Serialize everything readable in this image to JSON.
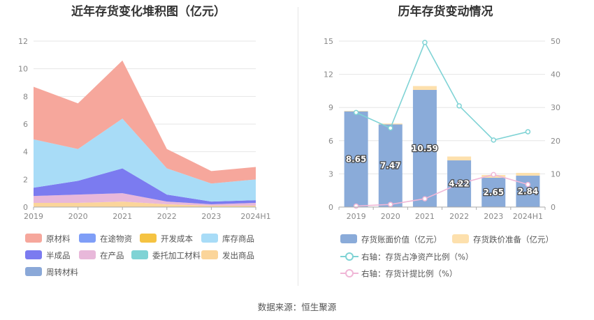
{
  "left": {
    "title": "近年存货变化堆积图（亿元）",
    "legend": [
      "原材料",
      "在途物资",
      "开发成本",
      "库存商品",
      "半成品",
      "在产品",
      "委托加工材料",
      "发出商品",
      "周转材料"
    ]
  },
  "right": {
    "title": "历年存货变动情况",
    "legend": {
      "bar1": "存货账面价值（亿元）",
      "bar2": "存货跌价准备（亿元）",
      "line1": "右轴：存货占净资产比例（%）",
      "line2": "右轴：存货计提比例（%）"
    }
  },
  "source": "数据来源：恒生聚源",
  "colors": {
    "raw_material": "#f6a79c",
    "in_transit": "#7f9ef7",
    "dev_cost": "#f5c342",
    "finished_goods": "#a8dcf7",
    "semi_finished": "#7b7bf0",
    "wip": "#e8b8da",
    "outsourced": "#7fd3d5",
    "shipped": "#fbd59a",
    "turnover": "#8aa8d8",
    "bar_value": "#8aabd9",
    "bar_provision": "#fde0ad",
    "line_ratio": "#7fd3d5",
    "line_provision": "#f0b7d7"
  },
  "chart_data": [
    {
      "type": "area",
      "stacked": true,
      "categories": [
        "2019",
        "2020",
        "2021",
        "2022",
        "2023",
        "2024H1"
      ],
      "ylim": [
        0,
        12
      ],
      "yticks": [
        0,
        2,
        4,
        6,
        8,
        10,
        12
      ],
      "series": [
        {
          "name": "发出商品",
          "values": [
            0.3,
            0.3,
            0.4,
            0.2,
            0.1,
            0.1
          ]
        },
        {
          "name": "在产品",
          "values": [
            0.5,
            0.6,
            0.6,
            0.2,
            0.1,
            0.2
          ]
        },
        {
          "name": "半成品",
          "values": [
            0.6,
            1.0,
            1.8,
            0.5,
            0.2,
            0.2
          ]
        },
        {
          "name": "库存商品",
          "values": [
            3.5,
            2.3,
            3.6,
            1.9,
            1.3,
            1.5
          ]
        },
        {
          "name": "原材料",
          "values": [
            3.8,
            3.3,
            4.2,
            1.4,
            0.9,
            0.9
          ]
        }
      ]
    },
    {
      "type": "bar",
      "categories": [
        "2019",
        "2020",
        "2021",
        "2022",
        "2023",
        "2024H1"
      ],
      "ylim": [
        0,
        15
      ],
      "yticks": [
        0,
        3,
        6,
        9,
        12,
        15
      ],
      "y2lim": [
        0,
        50
      ],
      "y2ticks": [
        0,
        10,
        20,
        30,
        40,
        50
      ],
      "series": [
        {
          "name": "存货账面价值（亿元）",
          "type": "bar",
          "values": [
            8.65,
            7.47,
            10.59,
            4.22,
            2.65,
            2.84
          ],
          "labels": [
            "8.65",
            "7.47",
            "10.59",
            "4.22",
            "2.65",
            "2.84"
          ]
        },
        {
          "name": "存货跌价准备（亿元）",
          "type": "bar",
          "values": [
            0.05,
            0.08,
            0.35,
            0.35,
            0.25,
            0.25
          ]
        },
        {
          "name": "右轴：存货占净资产比例（%）",
          "type": "line",
          "axis": "right",
          "values": [
            28.5,
            23.8,
            49.6,
            30.5,
            20.2,
            22.7
          ]
        },
        {
          "name": "右轴：存货计提比例（%）",
          "type": "line",
          "axis": "right",
          "values": [
            0.3,
            0.8,
            2.5,
            7.0,
            9.8,
            6.8
          ]
        }
      ]
    }
  ]
}
